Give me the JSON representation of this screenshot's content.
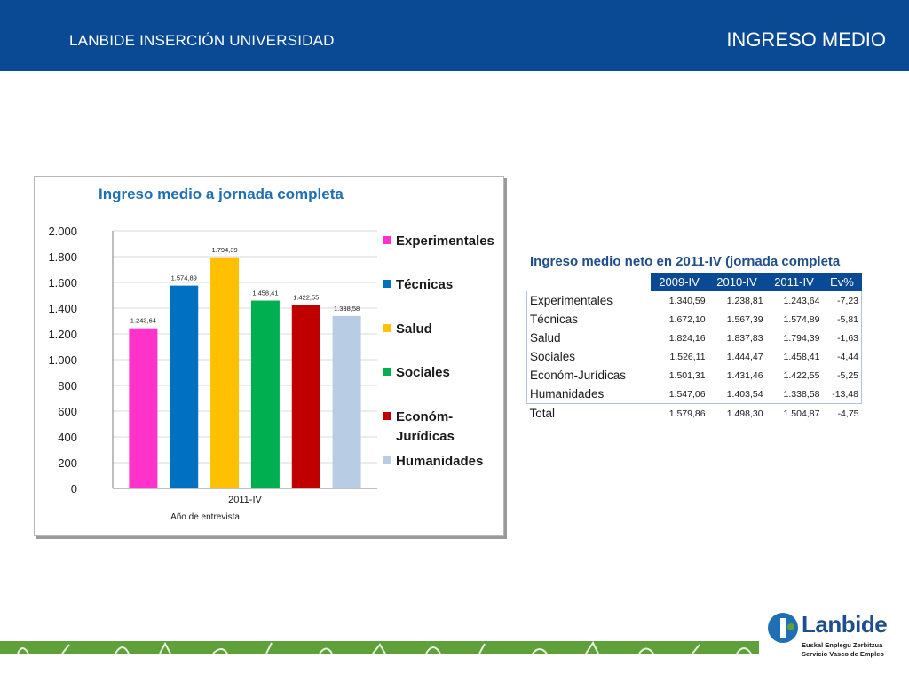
{
  "header": {
    "left_title": "LANBIDE INSERCIÓN UNIVERSIDAD",
    "right_title": "INGRESO MEDIO"
  },
  "colors": {
    "header_bg": "#0a4a94",
    "title_blue": "#1f6fb4",
    "footer_green": "#5fa03a"
  },
  "chart_data": {
    "type": "bar",
    "title": "Ingreso medio a jornada completa",
    "xlabel": "Año de entrevista",
    "ylabel": "",
    "categories": [
      "2011-IV"
    ],
    "ylim": [
      0,
      2000
    ],
    "yticks": [
      0,
      200,
      400,
      600,
      800,
      1000,
      1200,
      1400,
      1600,
      1800,
      2000
    ],
    "ytick_labels": [
      "0",
      "200",
      "400",
      "600",
      "800",
      "1.000",
      "1.200",
      "1.400",
      "1.600",
      "1.800",
      "2.000"
    ],
    "grid": true,
    "legend_position": "right",
    "series": [
      {
        "name": "Experimentales",
        "values": [
          1243.64
        ],
        "label": "1.243,64",
        "color": "#ff33cc"
      },
      {
        "name": "Técnicas",
        "values": [
          1574.89
        ],
        "label": "1.574,89",
        "color": "#0070c0"
      },
      {
        "name": "Salud",
        "values": [
          1794.39
        ],
        "label": "1.794,39",
        "color": "#ffc000"
      },
      {
        "name": "Sociales",
        "values": [
          1458.41
        ],
        "label": "1.458,41",
        "color": "#00b050"
      },
      {
        "name": "Económ-Jurídicas",
        "values": [
          1422.55
        ],
        "label": "1.422,55",
        "color": "#c00000"
      },
      {
        "name": "Humanidades",
        "values": [
          1338.58
        ],
        "label": "1.338,58",
        "color": "#b8cce4"
      }
    ]
  },
  "table": {
    "title": "Ingreso medio neto en 2011-IV (jornada completa",
    "columns": [
      "2009-IV",
      "2010-IV",
      "2011-IV",
      "Ev%"
    ],
    "rows": [
      {
        "name": "Experimentales",
        "values": [
          "1.340,59",
          "1.238,81",
          "1.243,64",
          "-7,23"
        ]
      },
      {
        "name": "Técnicas",
        "values": [
          "1.672,10",
          "1.567,39",
          "1.574,89",
          "-5,81"
        ]
      },
      {
        "name": "Salud",
        "values": [
          "1.824,16",
          "1.837,83",
          "1.794,39",
          "-1,63"
        ]
      },
      {
        "name": "Sociales",
        "values": [
          "1.526,11",
          "1.444,47",
          "1.458,41",
          "-4,44"
        ]
      },
      {
        "name": "Económ-Jurídicas",
        "values": [
          "1.501,31",
          "1.431,46",
          "1.422,55",
          "-5,25"
        ]
      },
      {
        "name": "Humanidades",
        "values": [
          "1.547,06",
          "1.403,54",
          "1.338,58",
          "-13,48"
        ]
      }
    ],
    "total": {
      "name": "Total",
      "values": [
        "1.579,86",
        "1.498,30",
        "1.504,87",
        "-4,75"
      ]
    }
  },
  "logo": {
    "word": "Lanbide",
    "sub1": "Euskal Enplegu Zerbitzua",
    "sub2": "Servicio Vasco de Empleo"
  }
}
